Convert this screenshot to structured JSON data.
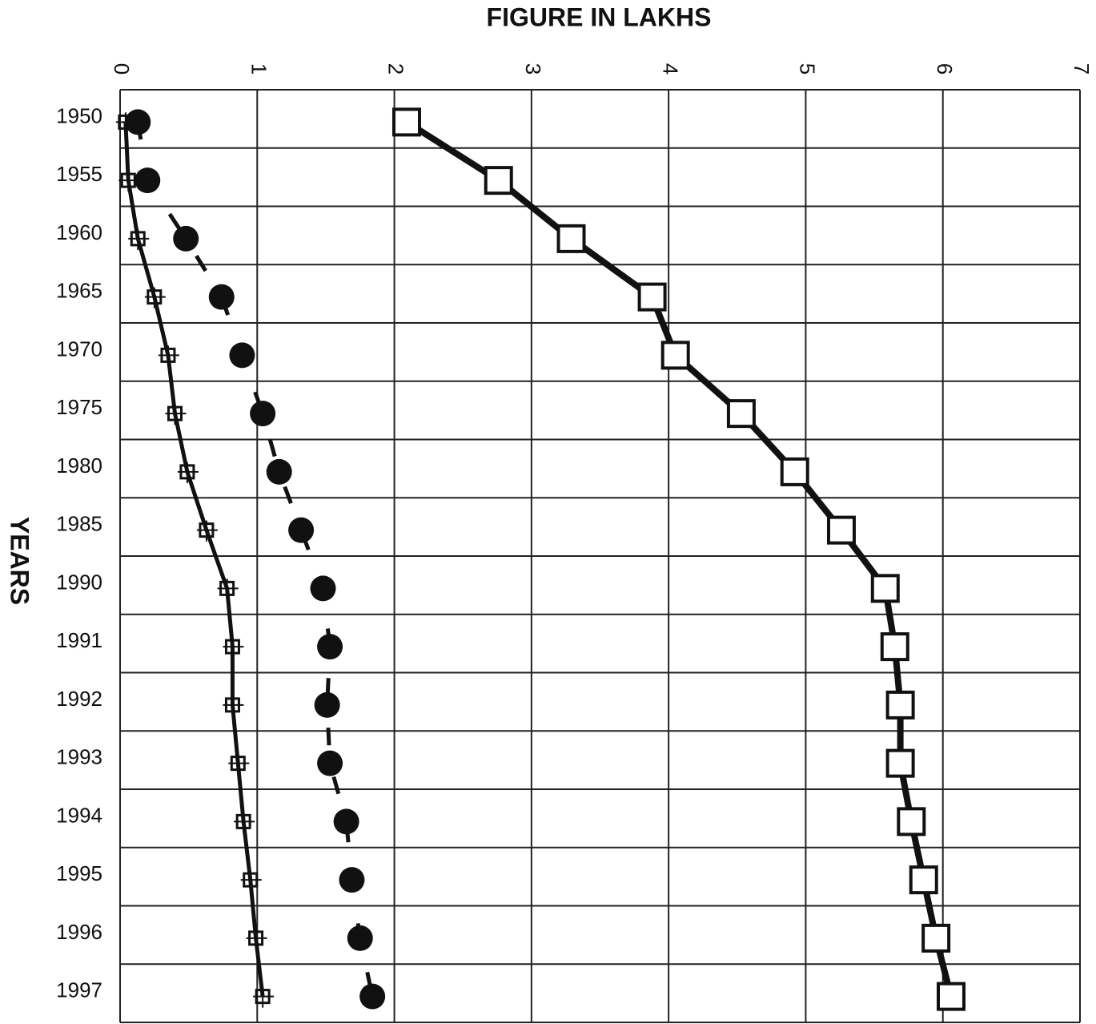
{
  "chart_data": {
    "type": "line",
    "title": "FIGURE IN LAKHS",
    "y_label": "YEARS",
    "categories": [
      "1950",
      "1955",
      "1960",
      "1965",
      "1970",
      "1975",
      "1980",
      "1985",
      "1990",
      "1991",
      "1992",
      "1993",
      "1994",
      "1995",
      "1996",
      "1997"
    ],
    "series": [
      {
        "color": "#111111",
        "marker": "square",
        "values": [
          2.09,
          2.76,
          3.29,
          3.88,
          4.05,
          4.53,
          4.92,
          5.26,
          5.58,
          5.65,
          5.69,
          5.69,
          5.77,
          5.86,
          5.95,
          6.06
        ]
      },
      {
        "color": "#111111",
        "marker": "circle",
        "dash": true,
        "values": [
          0.13,
          0.2,
          0.48,
          0.74,
          0.89,
          1.04,
          1.16,
          1.32,
          1.48,
          1.53,
          1.51,
          1.53,
          1.65,
          1.69,
          1.75,
          1.84
        ]
      },
      {
        "color": "#111111",
        "marker": "cross-square",
        "values": [
          0.04,
          0.06,
          0.13,
          0.25,
          0.35,
          0.4,
          0.49,
          0.63,
          0.78,
          0.82,
          0.82,
          0.86,
          0.9,
          0.95,
          0.99,
          1.04
        ]
      }
    ],
    "xlim": [
      0,
      7
    ],
    "xticks": [
      0,
      1,
      2,
      3,
      4,
      5,
      6,
      7
    ],
    "grid": true
  }
}
